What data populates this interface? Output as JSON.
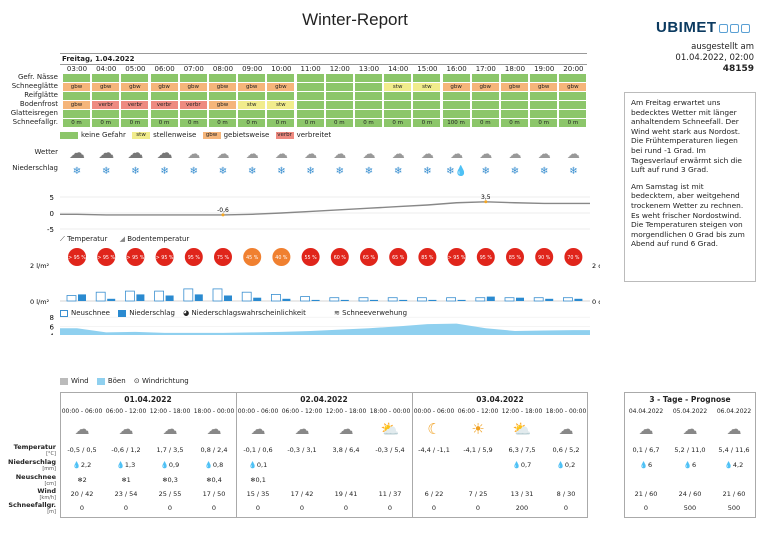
{
  "title": "Winter-Report",
  "brand": "UBIMET",
  "issued": {
    "line1": "ausgestellt am",
    "line2": "01.04.2022, 02:00",
    "id": "48159"
  },
  "info_text": [
    "Am Freitag erwartet uns bedecktes Wetter mit länger anhaltendem Schneefall. Der Wind weht stark aus Nordost. Die Frühtemperaturen liegen bei rund -1 Grad. Im Tagesverlauf erwärmt sich die Luft auf rund 3 Grad.",
    "Am Samstag ist mit bedecktem, aber weitgehend trockenem Wetter zu rechnen. Es weht frischer Nordostwind. Die Temperaturen steigen von morgendlichen 0 Grad bis zum Abend auf rund 6 Grad."
  ],
  "day_header": "Freitag, 1.04.2022",
  "hours": [
    "03:00",
    "04:00",
    "05:00",
    "06:00",
    "07:00",
    "08:00",
    "09:00",
    "10:00",
    "11:00",
    "12:00",
    "13:00",
    "14:00",
    "15:00",
    "16:00",
    "17:00",
    "18:00",
    "19:00",
    "20:00"
  ],
  "row_labels": [
    "Gefr. Nässe",
    "Schneeglätte",
    "Reifglätte",
    "Bodenfrost",
    "Glatteisregen",
    "Schneefallgr."
  ],
  "schneeglaette": [
    "gbw",
    "gbw",
    "gbw",
    "gbw",
    "gbw",
    "gbw",
    "gbw",
    "gbw",
    "",
    "",
    "",
    "stw",
    "stw",
    "gbw",
    "gbw",
    "gbw",
    "gbw",
    "gbw"
  ],
  "schneeglaette_col": [
    "o",
    "o",
    "o",
    "o",
    "o",
    "o",
    "o",
    "o",
    "g",
    "g",
    "g",
    "y",
    "y",
    "o",
    "o",
    "o",
    "o",
    "o"
  ],
  "bodenfrost": [
    "gbw",
    "verbr",
    "verbr",
    "verbr",
    "verbr",
    "gbw",
    "stw",
    "stw",
    "",
    "",
    "",
    "",
    "",
    "",
    "",
    "",
    "",
    ""
  ],
  "bodenfrost_col": [
    "o",
    "r",
    "r",
    "r",
    "r",
    "o",
    "y",
    "y",
    "g",
    "g",
    "g",
    "g",
    "g",
    "g",
    "g",
    "g",
    "g",
    "g"
  ],
  "schneefallgr": [
    "0 m",
    "0 m",
    "0 m",
    "0 m",
    "0 m",
    "0 m",
    "0 m",
    "0 m",
    "0 m",
    "0 m",
    "0 m",
    "0 m",
    "0 m",
    "100 m",
    "0 m",
    "0 m",
    "0 m",
    "0 m"
  ],
  "legend": {
    "none": "keine Gefahr",
    "stw_code": "stw",
    "stw": "stellenweise",
    "gbw_code": "gbw",
    "gbw": "gebietsweise",
    "verbr_code": "verbr",
    "verbr": "verbreitet"
  },
  "wetter_label": "Wetter",
  "niederschlag_label": "Niederschlag",
  "temp_chart": {
    "ticks": [
      "5",
      "0",
      "-5"
    ],
    "min_label": "-0,6",
    "max_label": "3,5",
    "legend_temp": "Temperatur",
    "legend_boden": "Bodentemperatur",
    "values": [
      -0.4,
      -0.6,
      -0.6,
      -0.6,
      -0.6,
      -0.6,
      -0.4,
      0,
      0.5,
      1,
      1.5,
      2,
      2.5,
      3.2,
      3.5,
      3.2,
      3,
      3
    ]
  },
  "probabilities": [
    "> 95 %",
    "> 95 %",
    "> 95 %",
    "> 95 %",
    "95 %",
    "75 %",
    "45 %",
    "40 %",
    "55 %",
    "60 %",
    "65 %",
    "65 %",
    "85 %",
    "> 95 %",
    "95 %",
    "85 %",
    "90 %",
    "70 %"
  ],
  "precip_axis": {
    "left_top": "2 l/m²",
    "left_bottom": "0 l/m²",
    "right_top": "2 cm",
    "right_bottom": "0 cm"
  },
  "precip_legend": {
    "neuschnee": "Neuschnee",
    "niederschlag": "Niederschlag",
    "prob": "Niederschlagswahrscheinlichkeit",
    "drift": "Schneeverwehung"
  },
  "wind_chart": {
    "ticks": [
      "8",
      "6",
      "4",
      "2",
      "0"
    ],
    "legend_wind": "Wind",
    "legend_boeen": "Böen",
    "legend_dir": "Windrichtung"
  },
  "days": [
    {
      "date": "01.04.2022",
      "slots": [
        {
          "time": "00:00 - 06:00",
          "temp": "-0,5 / 0,5",
          "rain": "2,2",
          "snow": "2",
          "wind": "20 / 42",
          "fall": "0"
        },
        {
          "time": "06:00 - 12:00",
          "temp": "-0,6 / 1,2",
          "rain": "1,3",
          "snow": "1",
          "wind": "23 / 54",
          "fall": "0"
        },
        {
          "time": "12:00 - 18:00",
          "temp": "1,7 / 3,5",
          "rain": "0,9",
          "snow": "0,3",
          "wind": "25 / 55",
          "fall": "0"
        },
        {
          "time": "18:00 - 00:00",
          "temp": "0,8 / 2,4",
          "rain": "0,8",
          "snow": "0,4",
          "wind": "17 / 50",
          "fall": "0"
        }
      ]
    },
    {
      "date": "02.04.2022",
      "slots": [
        {
          "time": "00:00 - 06:00",
          "temp": "-0,1 / 0,6",
          "rain": "0,1",
          "snow": "0,1",
          "wind": "15 / 35",
          "fall": "0"
        },
        {
          "time": "06:00 - 12:00",
          "temp": "-0,3 / 3,1",
          "rain": "",
          "snow": "",
          "wind": "17 / 42",
          "fall": "0"
        },
        {
          "time": "12:00 - 18:00",
          "temp": "3,8 / 6,4",
          "rain": "",
          "snow": "",
          "wind": "19 / 41",
          "fall": "0"
        },
        {
          "time": "18:00 - 00:00",
          "temp": "-0,3 / 5,4",
          "rain": "",
          "snow": "",
          "wind": "11 / 37",
          "fall": "0"
        }
      ]
    },
    {
      "date": "03.04.2022",
      "slots": [
        {
          "time": "00:00 - 06:00",
          "temp": "-4,4 / -1,1",
          "rain": "",
          "snow": "",
          "wind": "6 / 22",
          "fall": "0"
        },
        {
          "time": "06:00 - 12:00",
          "temp": "-4,1 / 5,9",
          "rain": "",
          "snow": "",
          "wind": "7 / 25",
          "fall": "0"
        },
        {
          "time": "12:00 - 18:00",
          "temp": "6,3 / 7,5",
          "rain": "0,7",
          "snow": "",
          "wind": "13 / 31",
          "fall": "200"
        },
        {
          "time": "18:00 - 00:00",
          "temp": "0,6 / 5,2",
          "rain": "0,2",
          "snow": "",
          "wind": "8 / 30",
          "fall": "0"
        }
      ]
    }
  ],
  "forecast": {
    "title": "3 - Tage - Prognose",
    "days": [
      {
        "date": "04.04.2022",
        "temp": "0,1 / 6,7",
        "rain": "6",
        "wind": "21 / 60",
        "fall": "0"
      },
      {
        "date": "05.04.2022",
        "temp": "5,2 / 11,0",
        "rain": "6",
        "wind": "24 / 60",
        "fall": "500"
      },
      {
        "date": "06.04.2022",
        "temp": "5,4 / 11,6",
        "rain": "4,2",
        "wind": "21 / 60",
        "fall": "500"
      }
    ]
  },
  "bottom_labels": {
    "temp": "Temperatur",
    "temp_unit": "[°C]",
    "rain": "Niederschlag",
    "rain_unit": "[mm]",
    "snow": "Neuschnee",
    "snow_unit": "[cm]",
    "wind": "Wind",
    "wind_unit": "[km/h]",
    "fall": "Schneefallgr.",
    "fall_unit": "[m]"
  }
}
